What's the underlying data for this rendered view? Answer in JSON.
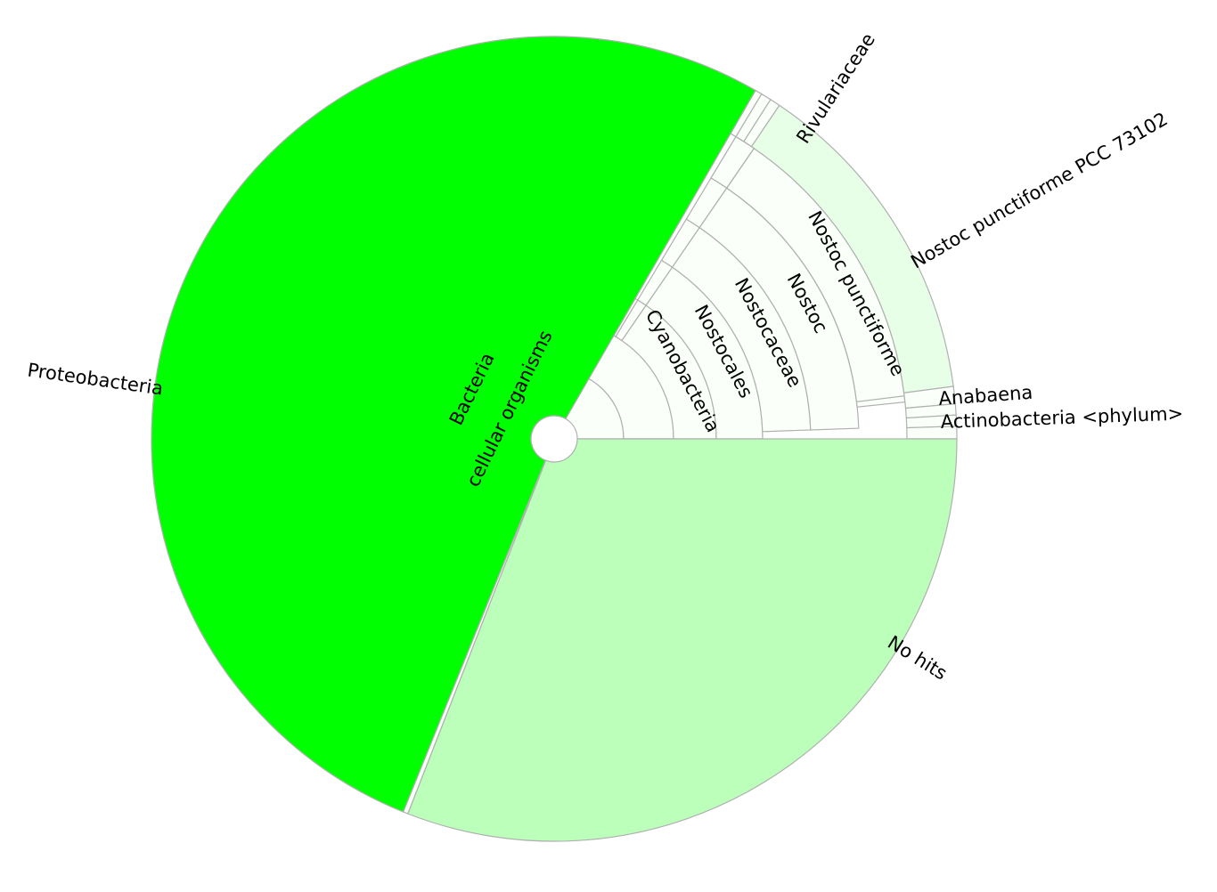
{
  "chart_data": {
    "type": "sunburst",
    "colors": {
      "proteobacteria": "#00ff00",
      "no_hits": "#bbffbb",
      "nostoc_pcc": "#e6ffe6",
      "pale": "#fafffa",
      "stroke": "#b0b0b0"
    },
    "segments": [
      {
        "ring": 1,
        "start": 0,
        "end": 180,
        "fill": "pale"
      },
      {
        "ring": 2,
        "start": 0,
        "end": 180,
        "fill": "pale"
      },
      {
        "ring": 2,
        "start": 180,
        "end": 360,
        "fill": "pale"
      },
      {
        "ring": 3,
        "start": 0,
        "end": 55.5,
        "fill": "pale"
      },
      {
        "ring": 4,
        "start": 0,
        "end": 55.5,
        "fill": "pale"
      },
      {
        "ring": 5,
        "start": 2.0,
        "end": 55.5,
        "fill": "pale"
      },
      {
        "ring": 6,
        "start": 2.0,
        "end": 55.5,
        "fill": "pale"
      },
      {
        "ring": 7,
        "start": 6.0,
        "end": 55.5,
        "fill": "pale"
      },
      {
        "ring": 8,
        "start": 7.0,
        "end": 55.5,
        "fill": "pale"
      },
      {
        "ring": 9,
        "start": 7.5,
        "end": 56.0,
        "fill": "nostoc_pcc"
      },
      {
        "ring": 9,
        "start": 5.0,
        "end": 7.5,
        "fill": "pale"
      },
      {
        "ring": 9,
        "start": 3.4,
        "end": 5.0,
        "fill": "pale"
      },
      {
        "ring": 9,
        "start": 1.8,
        "end": 3.4,
        "fill": "pale"
      },
      {
        "ring": 9,
        "start": 0,
        "end": 1.8,
        "fill": "pale"
      },
      {
        "ring": 9,
        "start": 56.0,
        "end": 57.5,
        "fill": "pale"
      },
      {
        "ring": 9,
        "start": 57.5,
        "end": 59.0,
        "fill": "pale"
      },
      {
        "ring": 3,
        "start": 55.5,
        "end": 59.0,
        "fill": "pale"
      },
      {
        "ring": 4,
        "start": 55.5,
        "end": 59.0,
        "fill": "pale"
      },
      {
        "ring": 5,
        "start": 55.5,
        "end": 59.0,
        "fill": "pale"
      },
      {
        "ring": 6,
        "start": 55.5,
        "end": 59.0,
        "fill": "pale"
      },
      {
        "ring": 7,
        "start": 55.5,
        "end": 59.0,
        "fill": "pale"
      },
      {
        "ring": 8,
        "start": 55.5,
        "end": 59.0,
        "fill": "pale"
      },
      {
        "ring": 3,
        "start": 59.0,
        "end": 60.0,
        "fill": "pale"
      },
      {
        "ring": 9,
        "start": 59.0,
        "end": 60.0,
        "fill": "pale"
      },
      {
        "ring": "big",
        "start": 60.0,
        "end": 248.0,
        "fill": "proteobacteria"
      },
      {
        "ring": "big",
        "start": 248.0,
        "end": 248.7,
        "fill": "pale"
      },
      {
        "ring": "big",
        "start": 248.7,
        "end": 360,
        "fill": "no_hits"
      }
    ],
    "labels": [
      {
        "text": "cellular organisms",
        "angle": 90,
        "ring": 1,
        "orient": "tangent"
      },
      {
        "text": "Bacteria",
        "angle": 110,
        "ring": 2,
        "orient": "tangent"
      },
      {
        "text": "Cyanobacteria",
        "angle": 20,
        "ring": 3,
        "orient": "radial"
      },
      {
        "text": "Nostocales",
        "angle": 21,
        "ring": 4,
        "orient": "radial"
      },
      {
        "text": "Nostocaceae",
        "angle": 22,
        "ring": 5,
        "orient": "radial"
      },
      {
        "text": "Nostoc",
        "angle": 23,
        "ring": 6,
        "orient": "radial"
      },
      {
        "text": "Nostoc punctiforme",
        "angle": 24,
        "ring": 7,
        "orient": "radial"
      },
      {
        "text": "Nostoc punctiforme PCC 73102",
        "angle": 30,
        "ring": "outside",
        "orient": "radial"
      },
      {
        "text": "Rivulariaceae",
        "angle": 58.5,
        "ring": "outside",
        "orient": "radial"
      },
      {
        "text": "Anabaena",
        "angle": 4.2,
        "ring": "outside",
        "orient": "radial"
      },
      {
        "text": "Actinobacteria <phylum>",
        "angle": 2.0,
        "ring": "outside",
        "orient": "radial"
      },
      {
        "text": "Proteobacteria",
        "angle": 175,
        "ring": "outside",
        "orient": "tangent"
      },
      {
        "text": "No hits",
        "angle": 330,
        "ring": "big",
        "orient": "radial"
      }
    ]
  }
}
